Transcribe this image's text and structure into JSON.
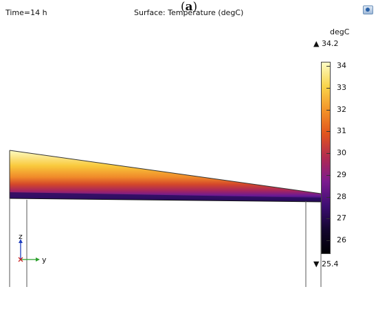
{
  "header": {
    "time_label": "Time=14 h",
    "plot_title": "Surface: Temperature (degC)"
  },
  "colorbar": {
    "unit": "degC",
    "max_symbol": "▲",
    "max_value": "34.2",
    "min_symbol": "▼",
    "min_value": "25.4",
    "ticks": [
      "34",
      "33",
      "32",
      "31",
      "30",
      "29",
      "28",
      "27",
      "26"
    ],
    "stops": [
      "#fdfcc4",
      "#f9d44a",
      "#f39328",
      "#e1541e",
      "#b02a52",
      "#7c1b8f",
      "#3e0e73",
      "#14062f",
      "#000004"
    ]
  },
  "axes": {
    "z_label": "z",
    "y_label": "y",
    "z_color": "#1f3fbf",
    "y_color": "#2ea02e",
    "x_color": "#cc2222"
  },
  "caption": {
    "open": "(",
    "letter": "a",
    "close": ")"
  }
}
